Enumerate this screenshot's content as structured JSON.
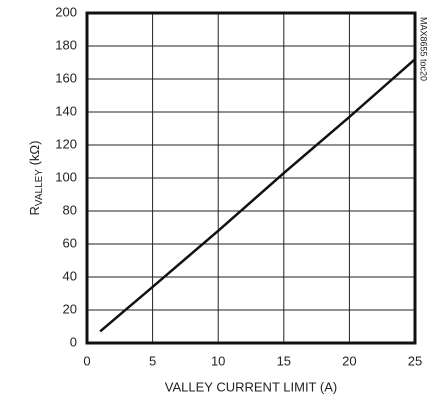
{
  "chart_data": {
    "type": "line",
    "xlabel": "VALLEY CURRENT LIMIT (A)",
    "ylabel": {
      "main": "R",
      "sub": "VALLEY",
      "unit": " (kΩ)"
    },
    "annotation": "MAX8655 toc20",
    "x": [
      1,
      5,
      10,
      15,
      20,
      25
    ],
    "series": [
      {
        "color": "#111111",
        "values": [
          7,
          34,
          68,
          103,
          137,
          172
        ]
      }
    ],
    "xlim": [
      0,
      25
    ],
    "xticks": [
      0,
      5,
      10,
      15,
      20,
      25
    ],
    "ylim": [
      0,
      200
    ],
    "yticks": [
      0,
      20,
      40,
      60,
      80,
      100,
      120,
      140,
      160,
      180,
      200
    ],
    "grid": true
  }
}
